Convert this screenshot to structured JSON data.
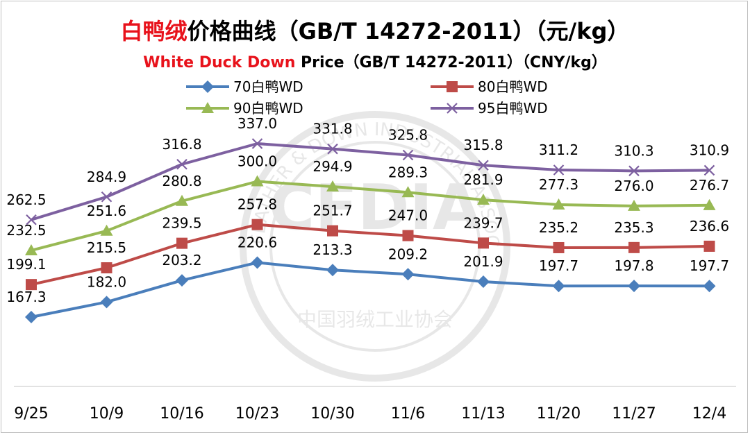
{
  "title": {
    "cn_highlight": "白鸭绒",
    "cn_rest": "价格曲线（GB/T 14272-2011）（元/kg）",
    "en_highlight": "White Duck Down",
    "en_rest": " Price（GB/T 14272-2011）（CNY/kg）"
  },
  "watermark": {
    "text": "CHINA FEATHER & DOWN INDUSTRIAL ASSOCIATION",
    "text_cn": "中国羽绒工业协会",
    "logo": "CFDIA"
  },
  "chart_data": {
    "type": "line",
    "categories": [
      "9/25",
      "10/9",
      "10/16",
      "10/23",
      "10/30",
      "11/6",
      "11/13",
      "11/20",
      "11/27",
      "12/4"
    ],
    "ylim": [
      100,
      360
    ],
    "grid": false,
    "legend_position": "top",
    "series": [
      {
        "name": "70白鸭WD",
        "color": "#4a7ebb",
        "marker": "diamond",
        "values": [
          167.3,
          182.0,
          203.2,
          220.6,
          213.3,
          209.2,
          201.9,
          197.7,
          197.8,
          197.7
        ]
      },
      {
        "name": "80白鸭WD",
        "color": "#be4b48",
        "marker": "square",
        "values": [
          199.1,
          215.5,
          239.5,
          257.8,
          251.7,
          247.0,
          239.7,
          235.2,
          235.3,
          236.6
        ]
      },
      {
        "name": "90白鸭WD",
        "color": "#98b954",
        "marker": "triangle",
        "values": [
          232.5,
          251.6,
          280.8,
          300.0,
          294.9,
          289.3,
          281.9,
          277.3,
          276.0,
          276.7
        ]
      },
      {
        "name": "95白鸭WD",
        "color": "#7d60a0",
        "marker": "x",
        "values": [
          262.5,
          284.9,
          316.8,
          337.0,
          331.8,
          325.8,
          315.8,
          311.2,
          310.3,
          310.9
        ]
      }
    ]
  }
}
